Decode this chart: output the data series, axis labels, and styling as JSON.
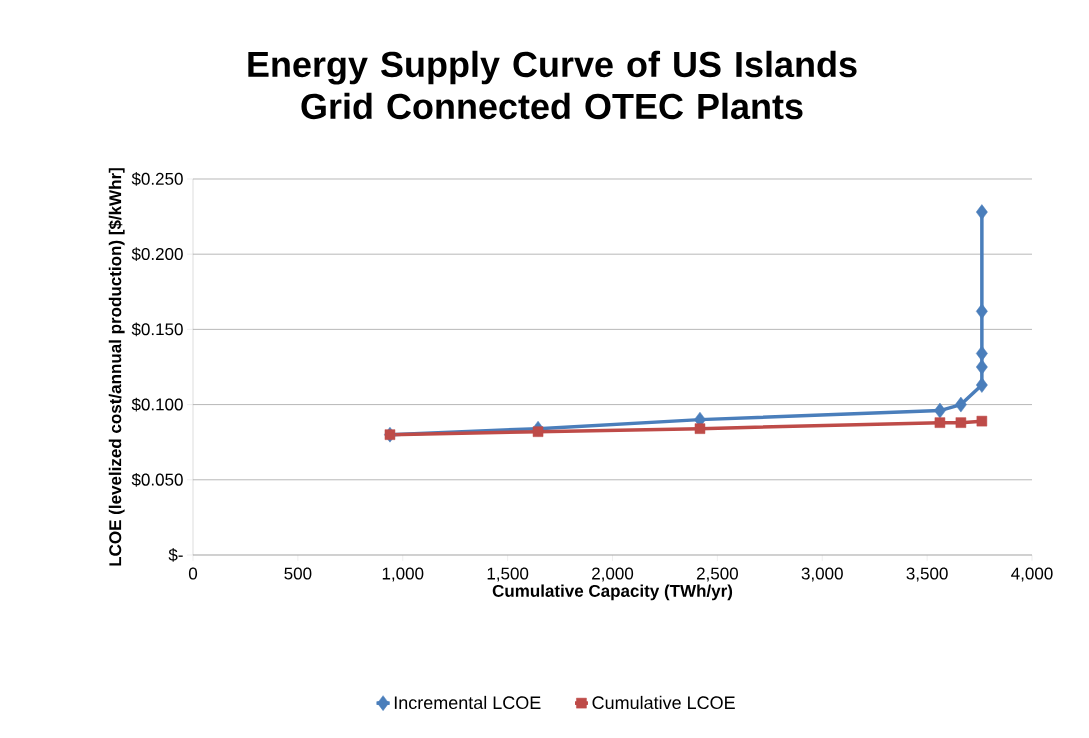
{
  "chart_data": {
    "type": "line",
    "title": "Energy Supply Curve of US Islands Grid Connected OTEC Plants",
    "xlabel": "Cumulative Capacity (TWh/yr)",
    "ylabel": "LCOE (levelized cost/annual production) [$/kWhr]",
    "xlim": [
      0,
      4000
    ],
    "xticks": [
      0,
      500,
      {
        "value": 1000,
        "label": "1,000"
      },
      {
        "value": 1500,
        "label": "1,500"
      },
      {
        "value": 2000,
        "label": "2,000"
      },
      {
        "value": 2500,
        "label": "2,500"
      },
      {
        "value": 3000,
        "label": "3,000"
      },
      {
        "value": 3500,
        "label": "3,500"
      },
      {
        "value": 4000,
        "label": "4,000"
      }
    ],
    "ylim": [
      0,
      0.25
    ],
    "yticks": [
      {
        "value": 0,
        "label": "$-"
      },
      {
        "value": 0.05,
        "label": "$0.050"
      },
      {
        "value": 0.1,
        "label": "$0.100"
      },
      {
        "value": 0.15,
        "label": "$0.150"
      },
      {
        "value": 0.2,
        "label": "$0.200"
      },
      {
        "value": 0.25,
        "label": "$0.250"
      }
    ],
    "grid": "y",
    "legend": "bottom",
    "line_style": "solid",
    "series": [
      {
        "name": "Incremental LCOE",
        "color": "#4a7ebb",
        "marker": "diamond",
        "x": [
          939,
          1645,
          2417,
          3561,
          3661,
          3761,
          3761,
          3761,
          3761,
          3761
        ],
        "values": [
          0.08,
          0.084,
          0.09,
          0.096,
          0.1,
          0.113,
          0.125,
          0.134,
          0.162,
          0.228
        ]
      },
      {
        "name": "Cumulative LCOE",
        "color": "#be4b48",
        "marker": "square",
        "x": [
          939,
          1645,
          2417,
          3561,
          3661,
          3761
        ],
        "values": [
          0.08,
          0.082,
          0.084,
          0.088,
          0.088,
          0.089
        ]
      }
    ]
  }
}
